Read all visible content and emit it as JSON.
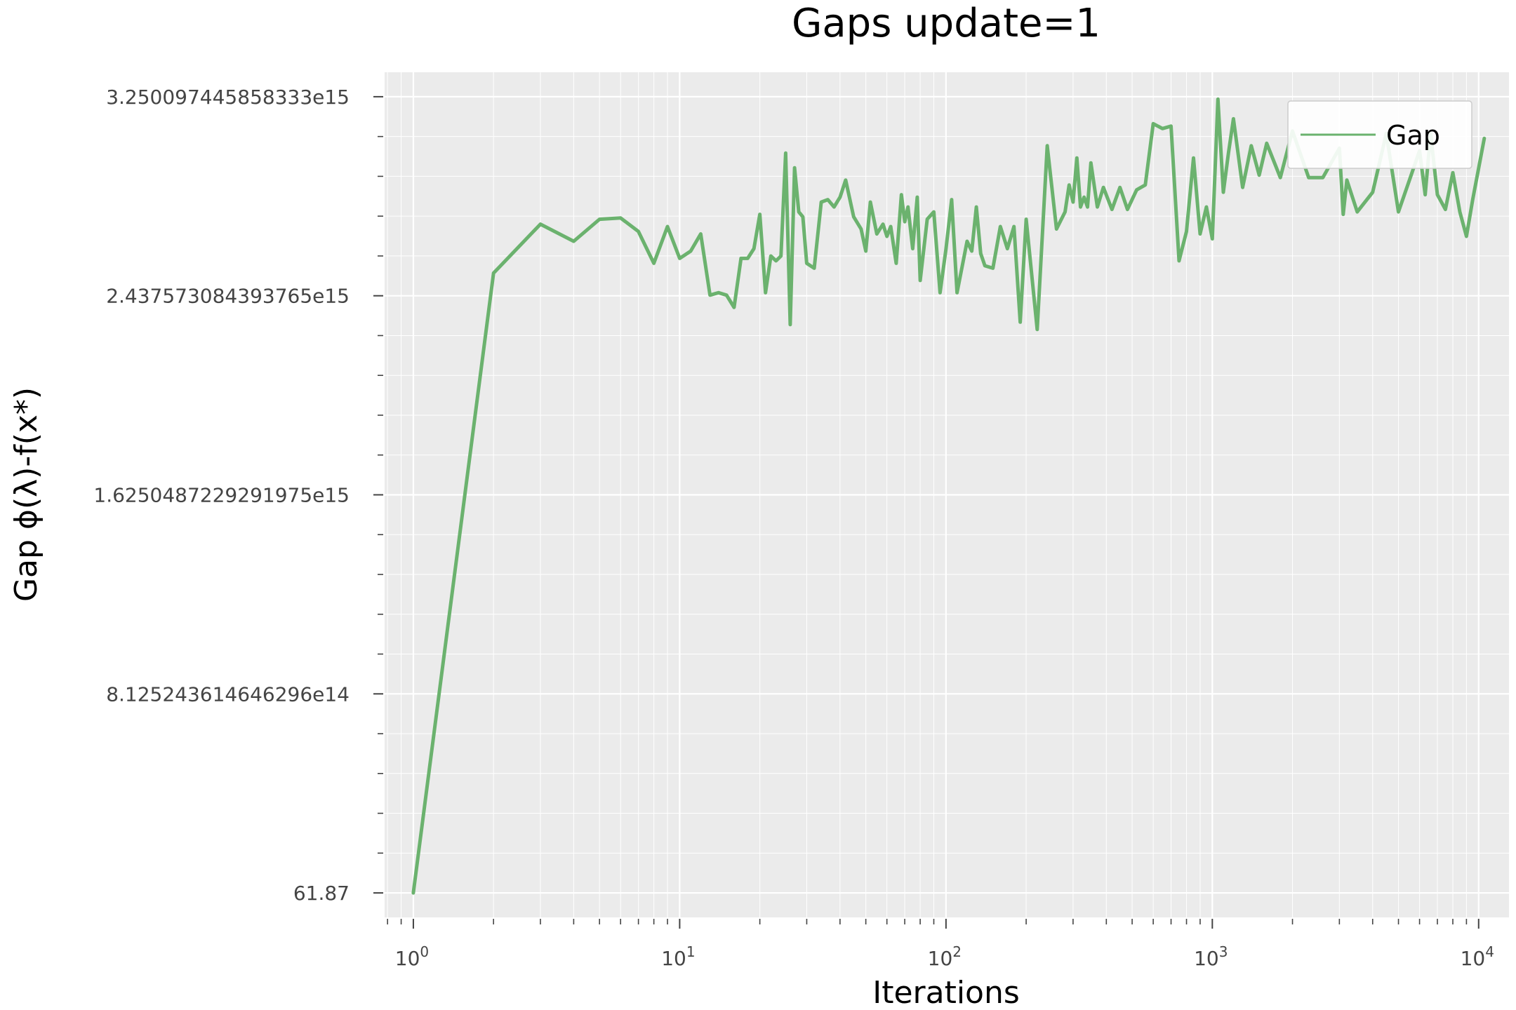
{
  "chart_data": {
    "type": "line",
    "title": "Gaps update=1",
    "xlabel": "Iterations",
    "ylabel": "Gap ϕ(λ)-f(x*)",
    "x_scale": "log",
    "xlim": [
      0.78,
      13000
    ],
    "ylim": [
      -100000000000000.0,
      3350000000000000.0
    ],
    "grid": true,
    "legend_position": "top-right",
    "colors": {
      "line": "#6bb26e",
      "plot_bg": "#ebebeb",
      "grid": "#ffffff"
    },
    "xticks": [
      {
        "value": 1,
        "base": "10",
        "exp": "0"
      },
      {
        "value": 10,
        "base": "10",
        "exp": "1"
      },
      {
        "value": 100,
        "base": "10",
        "exp": "2"
      },
      {
        "value": 1000,
        "base": "10",
        "exp": "3"
      },
      {
        "value": 10000,
        "base": "10",
        "exp": "4"
      }
    ],
    "yticks": [
      {
        "value": 61.87,
        "label": "61.87"
      },
      {
        "value": 812524361464629.6,
        "label": "8.125243614646296e14"
      },
      {
        "value": 1625048722929197.5,
        "label": "1.6250487229291975e15"
      },
      {
        "value": 2437573084393765,
        "label": "2.437573084393765e15"
      },
      {
        "value": 3250097445858333,
        "label": "3.250097445858333e15"
      }
    ],
    "series": [
      {
        "name": "Gap",
        "x": [
          1,
          2,
          3,
          4,
          5,
          6,
          7,
          8,
          9,
          10,
          11,
          12,
          13,
          14,
          15,
          16,
          17,
          18,
          19,
          20,
          21,
          22,
          23,
          24,
          25,
          26,
          27,
          28,
          29,
          30,
          32,
          34,
          36,
          38,
          40,
          42,
          45,
          48,
          50,
          52,
          55,
          58,
          60,
          62,
          65,
          68,
          70,
          72,
          75,
          78,
          80,
          85,
          90,
          95,
          100,
          105,
          110,
          120,
          125,
          130,
          135,
          140,
          150,
          160,
          170,
          180,
          190,
          200,
          220,
          240,
          260,
          280,
          290,
          300,
          310,
          320,
          330,
          340,
          350,
          370,
          390,
          420,
          450,
          480,
          520,
          560,
          600,
          650,
          700,
          750,
          800,
          850,
          900,
          950,
          1000,
          1050,
          1100,
          1150,
          1200,
          1300,
          1400,
          1500,
          1600,
          1800,
          2000,
          2300,
          2600,
          3000,
          3100,
          3200,
          3500,
          4000,
          4500,
          5000,
          5500,
          6000,
          6300,
          6600,
          7000,
          7500,
          8000,
          8500,
          9000,
          9500,
          10500
        ],
        "values": [
          61.87,
          2530000000000000.0,
          2730000000000000.0,
          2660000000000000.0,
          2750000000000000.0,
          2755000000000000.0,
          2700000000000000.0,
          2570000000000000.0,
          2720000000000000.0,
          2590000000000000.0,
          2620000000000000.0,
          2690000000000000.0,
          2440000000000000.0,
          2450000000000000.0,
          2440000000000000.0,
          2390000000000000.0,
          2590000000000000.0,
          2590000000000000.0,
          2630000000000000.0,
          2770000000000000.0,
          2450000000000000.0,
          2600000000000000.0,
          2580000000000000.0,
          2600000000000000.0,
          3020000000000000.0,
          2320000000000000.0,
          2960000000000000.0,
          2780000000000000.0,
          2760000000000000.0,
          2570000000000000.0,
          2550000000000000.0,
          2820000000000000.0,
          2830000000000000.0,
          2800000000000000.0,
          2840000000000000.0,
          2910000000000000.0,
          2760000000000000.0,
          2710000000000000.0,
          2620000000000000.0,
          2820000000000000.0,
          2690000000000000.0,
          2730000000000000.0,
          2680000000000000.0,
          2720000000000000.0,
          2570000000000000.0,
          2850000000000000.0,
          2740000000000000.0,
          2800000000000000.0,
          2630000000000000.0,
          2840000000000000.0,
          2500000000000000.0,
          2750000000000000.0,
          2780000000000000.0,
          2450000000000000.0,
          2630000000000000.0,
          2830000000000000.0,
          2450000000000000.0,
          2660000000000000.0,
          2620000000000000.0,
          2800000000000000.0,
          2610000000000000.0,
          2560000000000000.0,
          2550000000000000.0,
          2720000000000000.0,
          2630000000000000.0,
          2720000000000000.0,
          2330000000000000.0,
          2750000000000000.0,
          2300000000000000.0,
          3050000000000000.0,
          2710000000000000.0,
          2780000000000000.0,
          2890000000000000.0,
          2820000000000000.0,
          3000000000000000.0,
          2800000000000000.0,
          2840000000000000.0,
          2800000000000000.0,
          2980000000000000.0,
          2800000000000000.0,
          2880000000000000.0,
          2790000000000000.0,
          2880000000000000.0,
          2790000000000000.0,
          2870000000000000.0,
          2890000000000000.0,
          3140000000000000.0,
          3120000000000000.0,
          3130000000000000.0,
          2580000000000000.0,
          2700000000000000.0,
          3000000000000000.0,
          2690000000000000.0,
          2800000000000000.0,
          2670000000000000.0,
          3240000000000000.0,
          2860000000000000.0,
          3020000000000000.0,
          3160000000000000.0,
          2880000000000000.0,
          3050000000000000.0,
          2930000000000000.0,
          3060000000000000.0,
          2920000000000000.0,
          3110000000000000.0,
          2920000000000000.0,
          2920000000000000.0,
          3040000000000000.0,
          2770000000000000.0,
          2910000000000000.0,
          2780000000000000.0,
          2860000000000000.0,
          3100000000000000.0,
          2780000000000000.0,
          2910000000000000.0,
          3030000000000000.0,
          2850000000000000.0,
          3100000000000000.0,
          2850000000000000.0,
          2790000000000000.0,
          2940000000000000.0,
          2780000000000000.0,
          2680000000000000.0,
          2830000000000000.0,
          3080000000000000.0
        ]
      }
    ]
  }
}
